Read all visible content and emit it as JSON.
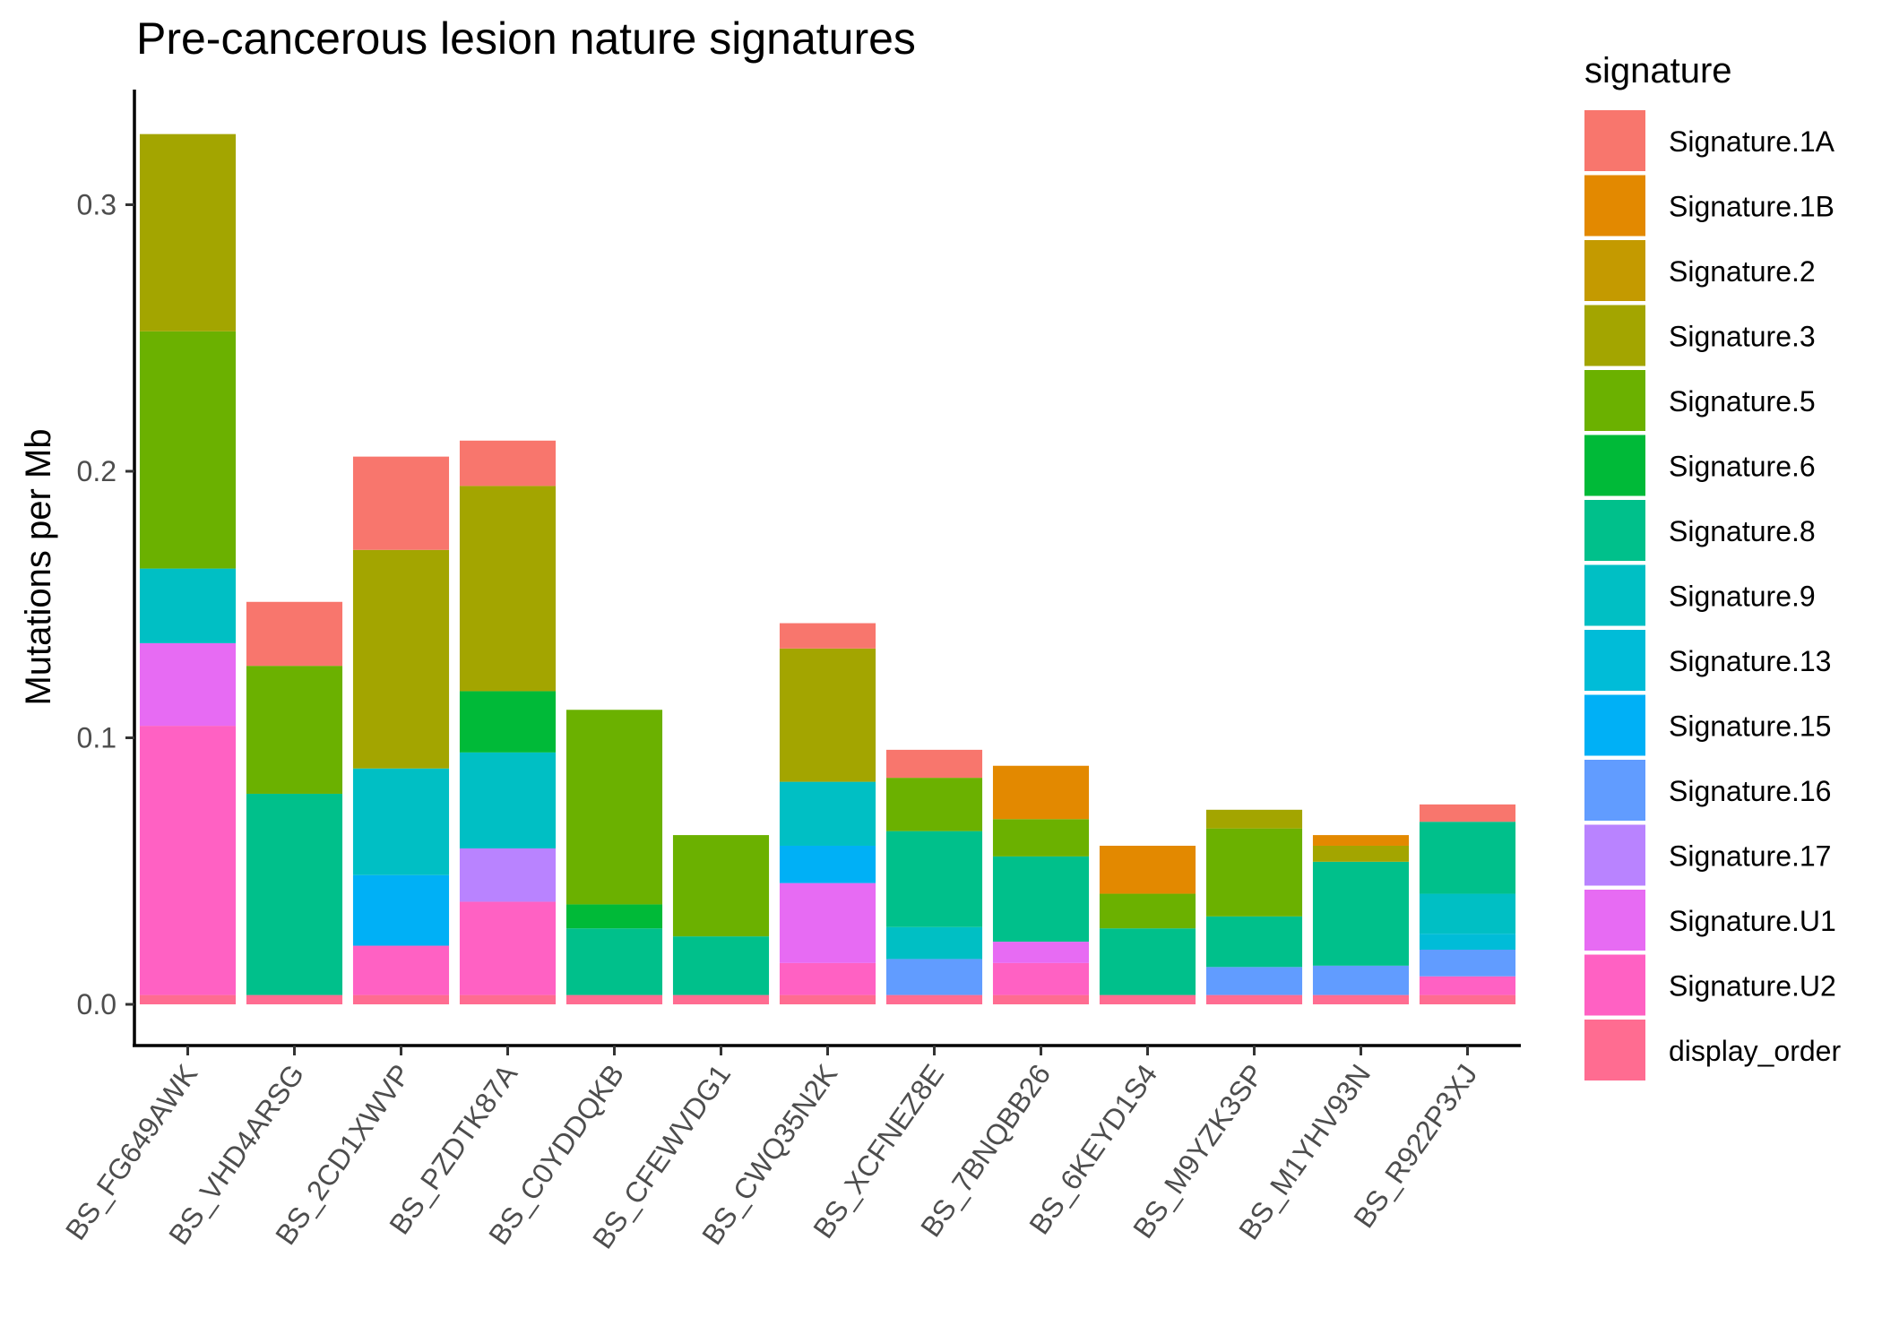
{
  "chart_data": {
    "type": "bar",
    "stacked": true,
    "title": "Pre-cancerous lesion nature signatures",
    "xlabel": "",
    "ylabel": "Mutations per Mb",
    "ylim": [
      -0.015,
      0.34
    ],
    "yticks": [
      0.0,
      0.1,
      0.2,
      0.3
    ],
    "ytick_labels": [
      "0.0",
      "0.1",
      "0.2",
      "0.3"
    ],
    "grid": false,
    "legend": {
      "title": "signature",
      "position": "right"
    },
    "categories": [
      "BS_FG649AWK",
      "BS_VHD4ARSG",
      "BS_2CD1XWVP",
      "BS_PZDTK87A",
      "BS_C0YDDQKB",
      "BS_CFEWVDG1",
      "BS_CWQ35N2K",
      "BS_XCFNEZ8E",
      "BS_7BNQBB26",
      "BS_6KEYD1S4",
      "BS_M9YZK3SP",
      "BS_M1YHV93N",
      "BS_R922P3XJ"
    ],
    "series": [
      {
        "name": "display_order",
        "color": "#FF6C91",
        "values": [
          0.0035,
          0.0035,
          0.0035,
          0.0035,
          0.0035,
          0.0035,
          0.0035,
          0.0035,
          0.0035,
          0.0035,
          0.0035,
          0.0035,
          0.0035
        ]
      },
      {
        "name": "Signature.U2",
        "color": "#FF61C3",
        "values": [
          0.101,
          0,
          0.0185,
          0.035,
          0,
          0,
          0.012,
          0,
          0.012,
          0,
          0,
          0,
          0.007
        ]
      },
      {
        "name": "Signature.U1",
        "color": "#E76BF3",
        "values": [
          0.031,
          0,
          0,
          0,
          0,
          0,
          0.03,
          0,
          0.008,
          0,
          0,
          0,
          0
        ]
      },
      {
        "name": "Signature.17",
        "color": "#B983FF",
        "values": [
          0,
          0,
          0,
          0.02,
          0,
          0,
          0,
          0,
          0,
          0,
          0,
          0,
          0
        ]
      },
      {
        "name": "Signature.16",
        "color": "#619CFF",
        "values": [
          0,
          0,
          0,
          0,
          0,
          0,
          0,
          0.0135,
          0,
          0,
          0.0105,
          0.011,
          0.01
        ]
      },
      {
        "name": "Signature.15",
        "color": "#00B0F6",
        "values": [
          0,
          0,
          0.0265,
          0,
          0,
          0,
          0.014,
          0,
          0,
          0,
          0,
          0,
          0
        ]
      },
      {
        "name": "Signature.13",
        "color": "#00BCD8",
        "values": [
          0,
          0,
          0,
          0,
          0,
          0,
          0,
          0,
          0,
          0,
          0,
          0,
          0.006
        ]
      },
      {
        "name": "Signature.9",
        "color": "#00BFC4",
        "values": [
          0.028,
          0,
          0.04,
          0.036,
          0,
          0,
          0.024,
          0.012,
          0,
          0,
          0,
          0,
          0.015
        ]
      },
      {
        "name": "Signature.8",
        "color": "#00C08B",
        "values": [
          0,
          0.0755,
          0,
          0,
          0.025,
          0.022,
          0,
          0.036,
          0.032,
          0.025,
          0.019,
          0.039,
          0.027
        ]
      },
      {
        "name": "Signature.6",
        "color": "#00BA38",
        "values": [
          0,
          0,
          0,
          0.023,
          0.009,
          0,
          0,
          0,
          0,
          0,
          0,
          0,
          0
        ]
      },
      {
        "name": "Signature.5",
        "color": "#6BB100",
        "values": [
          0.089,
          0.048,
          0,
          0,
          0.073,
          0.038,
          0,
          0.02,
          0.014,
          0.013,
          0.033,
          0,
          0
        ]
      },
      {
        "name": "Signature.3",
        "color": "#A3A500",
        "values": [
          0.074,
          0,
          0.082,
          0.077,
          0,
          0,
          0.05,
          0,
          0,
          0,
          0.007,
          0.006,
          0
        ]
      },
      {
        "name": "Signature.2",
        "color": "#C49A00",
        "values": [
          0,
          0,
          0,
          0,
          0,
          0,
          0,
          0,
          0,
          0,
          0,
          0,
          0
        ]
      },
      {
        "name": "Signature.1B",
        "color": "#E38900",
        "values": [
          0,
          0,
          0,
          0,
          0,
          0,
          0,
          0,
          0.02,
          0.018,
          0,
          0.004,
          0
        ]
      },
      {
        "name": "Signature.1A",
        "color": "#F8766D",
        "values": [
          0,
          0.024,
          0.035,
          0.017,
          0,
          0,
          0.0095,
          0.0105,
          0,
          0,
          0,
          0,
          0.0065
        ]
      }
    ],
    "legend_order": [
      "Signature.1A",
      "Signature.1B",
      "Signature.2",
      "Signature.3",
      "Signature.5",
      "Signature.6",
      "Signature.8",
      "Signature.9",
      "Signature.13",
      "Signature.15",
      "Signature.16",
      "Signature.17",
      "Signature.U1",
      "Signature.U2",
      "display_order"
    ]
  }
}
